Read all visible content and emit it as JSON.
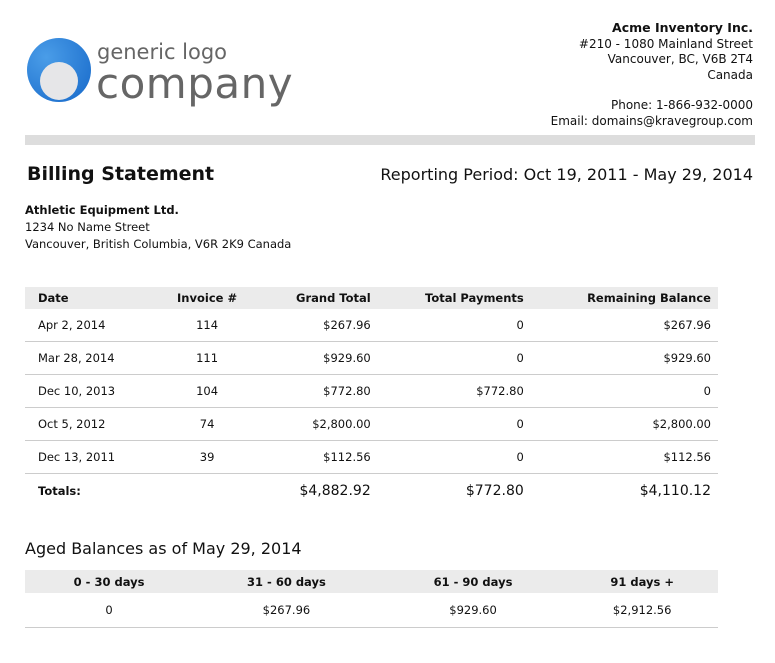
{
  "logo": {
    "line1": "generic logo",
    "line2": "company",
    "color": "#1a6fd0"
  },
  "company": {
    "name": "Acme Inventory Inc.",
    "address1": "#210 - 1080 Mainland Street",
    "address2": "Vancouver, BC, V6B 2T4",
    "country": "Canada",
    "phone": "Phone: 1-866-932-0000",
    "email": "Email: domains@kravegroup.com"
  },
  "statement": {
    "title": "Billing Statement",
    "period": "Reporting Period: Oct 19, 2011 - May 29, 2014"
  },
  "customer": {
    "name": "Athletic Equipment Ltd.",
    "street": "1234 No Name Street",
    "city": "Vancouver, British Columbia, V6R 2K9 Canada"
  },
  "invoices": {
    "headers": [
      "Date",
      "Invoice #",
      "Grand Total",
      "Total Payments",
      "Remaining Balance"
    ],
    "rows": [
      [
        "Apr 2, 2014",
        "114",
        "$267.96",
        "0",
        "$267.96"
      ],
      [
        "Mar 28, 2014",
        "111",
        "$929.60",
        "0",
        "$929.60"
      ],
      [
        "Dec 10, 2013",
        "104",
        "$772.80",
        "$772.80",
        "0"
      ],
      [
        "Oct 5, 2012",
        "74",
        "$2,800.00",
        "0",
        "$2,800.00"
      ],
      [
        "Dec 13, 2011",
        "39",
        "$112.56",
        "0",
        "$112.56"
      ]
    ],
    "totals": {
      "label": "Totals:",
      "grand_total": "$4,882.92",
      "payments": "$772.80",
      "remaining": "$4,110.12"
    }
  },
  "aged": {
    "title": "Aged Balances as of May 29, 2014",
    "headers": [
      "0 - 30 days",
      "31 - 60 days",
      "61 - 90 days",
      "91 days +"
    ],
    "values": [
      "0",
      "$267.96",
      "$929.60",
      "$2,912.56"
    ]
  }
}
